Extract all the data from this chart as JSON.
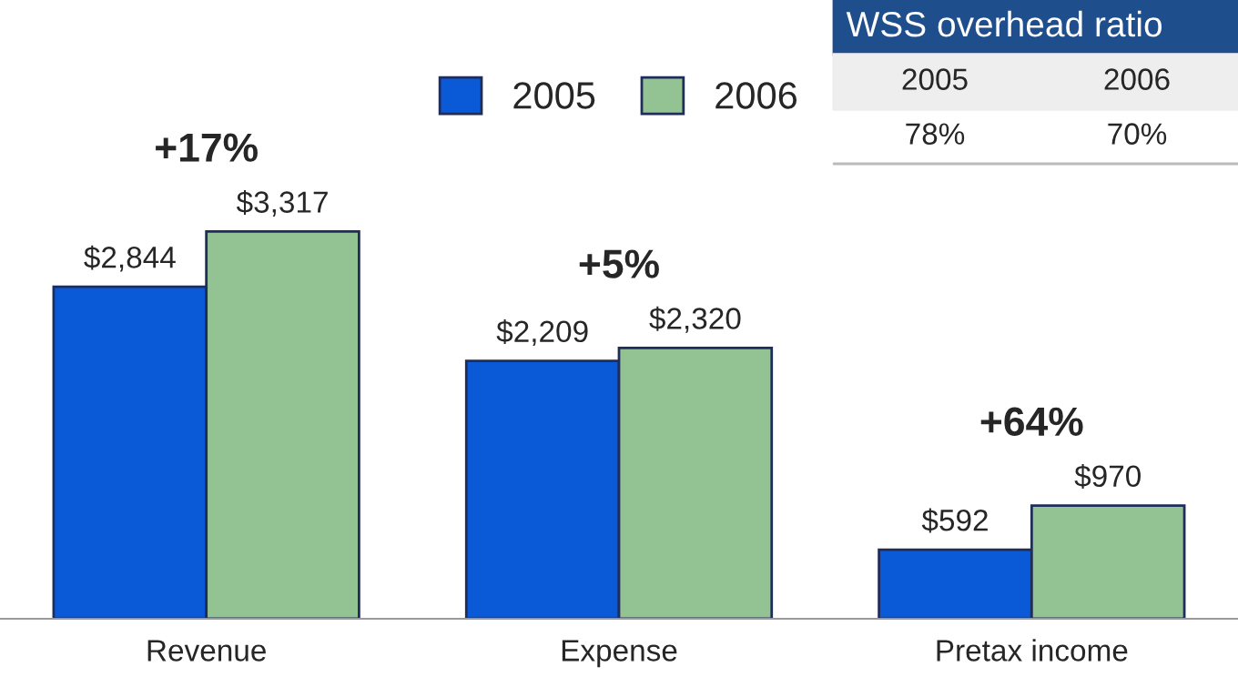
{
  "chart_data": {
    "type": "bar",
    "categories": [
      "Revenue",
      "Expense",
      "Pretax income"
    ],
    "series": [
      {
        "name": "2005",
        "color": "#0a5ad8",
        "values": [
          2844,
          2209,
          592
        ],
        "value_labels": [
          "$2,844",
          "$2,209",
          "$592"
        ]
      },
      {
        "name": "2006",
        "color": "#93c393",
        "values": [
          3317,
          2320,
          970
        ],
        "value_labels": [
          "$3,317",
          "$2,320",
          "$970"
        ]
      }
    ],
    "ylim": [
      0,
      5300
    ],
    "legend": "top",
    "grid": false,
    "annotations": [
      "+17%",
      "+5%",
      "+64%",
      "WSS overhead ratio",
      "2005",
      "2006",
      "78%",
      "70%"
    ]
  }
}
